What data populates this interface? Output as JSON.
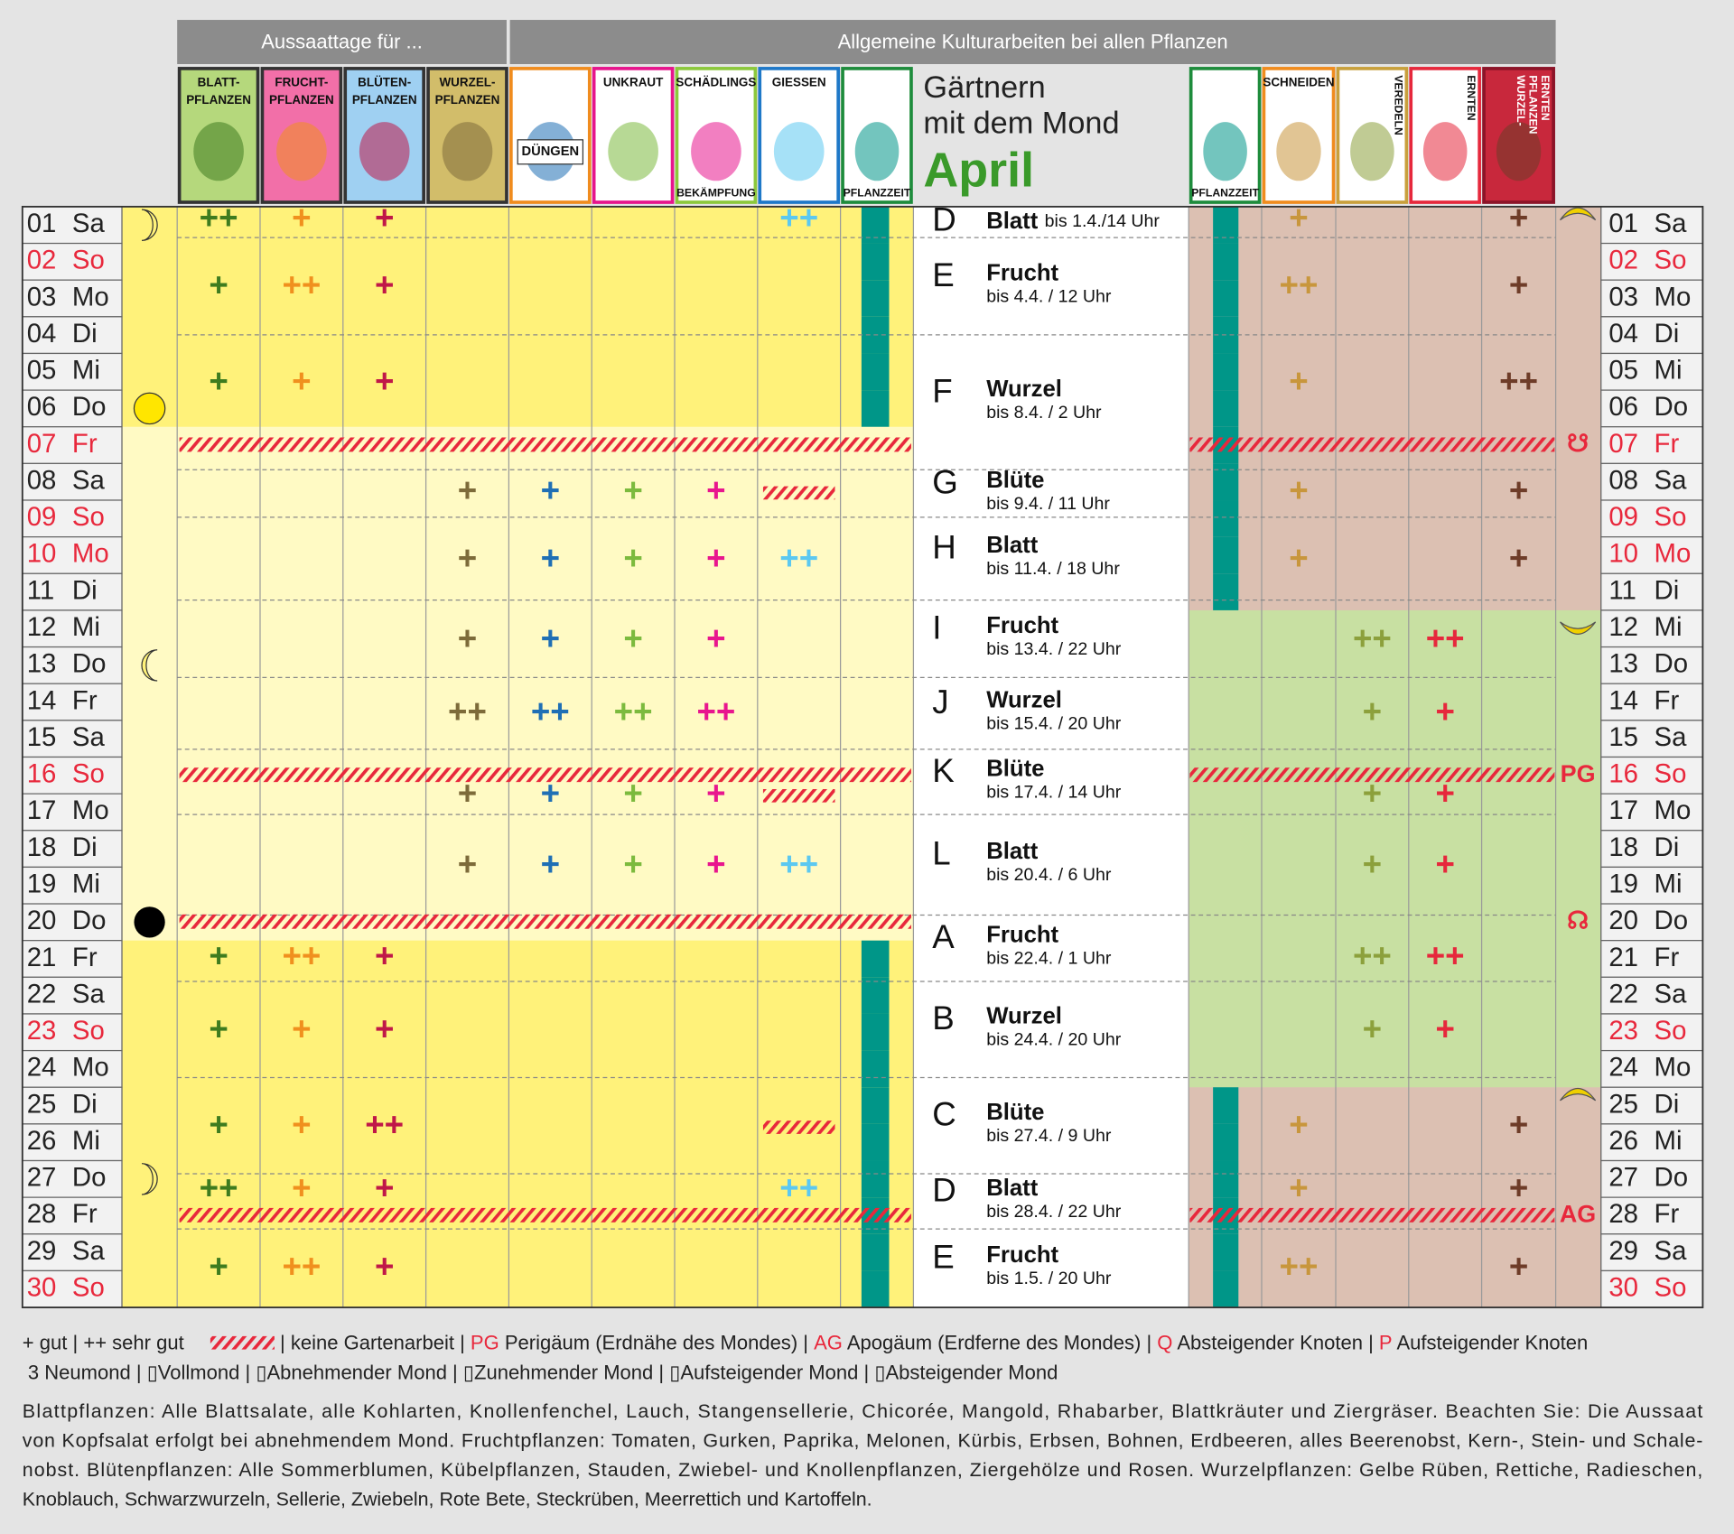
{
  "header": {
    "sowing": "Aussaattage für ...",
    "general": "Allgemeine Kulturarbeiten bei allen Pflanzen",
    "title_lines": [
      "Gärtnern",
      "mit dem Mond"
    ],
    "month": "April"
  },
  "columns_left": [
    {
      "top": [
        "BLATT-",
        "PFLANZEN"
      ],
      "bg": "#b5d87c",
      "border": "#333333",
      "mark": "#3e7c1f"
    },
    {
      "top": [
        "FRUCHT-",
        "PFLANZEN"
      ],
      "bg": "#f26fa8",
      "border": "#333333",
      "mark": "#f0901e"
    },
    {
      "top": [
        "BLÜTEN-",
        "PFLANZEN"
      ],
      "bg": "#9fd0f2",
      "border": "#333333",
      "mark": "#c01848"
    },
    {
      "top": [
        "WURZEL-",
        "PFLANZEN"
      ],
      "bg": "#d2bd6a",
      "border": "#333333",
      "mark": "#7d6b3a"
    },
    {
      "center": [
        "DÜNGEN"
      ],
      "bg": "#ffffff",
      "border": "#f08c1e",
      "mark": "#1f6fb5"
    },
    {
      "top": [
        "UNKRAUT"
      ],
      "bg": "#ffffff",
      "border": "#e6148c",
      "mark": "#7cba3e"
    },
    {
      "top": [
        "SCHÄDLINGS"
      ],
      "bottom": [
        "BEKÄMPFUNG"
      ],
      "bg": "#ffffff",
      "border": "#8cc83c",
      "mark": "#e8168e"
    },
    {
      "top": [
        "GIESSEN"
      ],
      "bg": "#ffffff",
      "border": "#1e78c8",
      "mark": "#5cc8f0"
    },
    {
      "bottom": [
        "PFLANZZEIT"
      ],
      "bg": "#ffffff",
      "border": "#1e8c3c",
      "mark": "#009688"
    }
  ],
  "columns_right": [
    {
      "bottom": [
        "PFLANZZEIT"
      ],
      "bg": "#ffffff",
      "border": "#1e8c3c",
      "mark": "#009688"
    },
    {
      "top": [
        "SCHNEIDEN"
      ],
      "bg": "#ffffff",
      "border": "#f08c1e",
      "mark": "#c8963c"
    },
    {
      "vertical": [
        "VEREDELN"
      ],
      "bg": "#ffffff",
      "border": "#c8a03c",
      "mark": "#8ca03c"
    },
    {
      "vertical": [
        "ERNTEN"
      ],
      "bg": "#ffffff",
      "border": "#e6283c",
      "mark": "#e6283c"
    },
    {
      "vertical": [
        "WURZEL-",
        "PFLANZEN",
        "ERNTEN"
      ],
      "bg": "#c8283c",
      "border": "#8c1428",
      "mark": "#6e3c28"
    }
  ],
  "days": [
    {
      "n": "01",
      "wd": "Sa",
      "pz_l": true,
      "pz_r": true
    },
    {
      "n": "02",
      "wd": "So",
      "red": true,
      "pz_l": true,
      "pz_r": true
    },
    {
      "n": "03",
      "wd": "Mo",
      "pz_l": true,
      "pz_r": true
    },
    {
      "n": "04",
      "wd": "Di",
      "pz_l": true,
      "pz_r": true
    },
    {
      "n": "05",
      "wd": "Mi",
      "pz_l": true,
      "pz_r": true
    },
    {
      "n": "06",
      "wd": "Do",
      "pz_l": true,
      "pz_r": true
    },
    {
      "n": "07",
      "wd": "Fr",
      "red": true,
      "pz_r": true,
      "nw_l": true,
      "nw_r": true,
      "marker": "☋"
    },
    {
      "n": "08",
      "wd": "Sa",
      "pz_r": true
    },
    {
      "n": "09",
      "wd": "So",
      "red": true,
      "pz_r": true
    },
    {
      "n": "10",
      "wd": "Mo",
      "red": true,
      "pz_r": true
    },
    {
      "n": "11",
      "wd": "Di",
      "pz_r": true
    },
    {
      "n": "12",
      "wd": "Mi"
    },
    {
      "n": "13",
      "wd": "Do"
    },
    {
      "n": "14",
      "wd": "Fr"
    },
    {
      "n": "15",
      "wd": "Sa"
    },
    {
      "n": "16",
      "wd": "So",
      "red": true,
      "nw_l": true,
      "nw_r": true,
      "marker": "PG"
    },
    {
      "n": "17",
      "wd": "Mo"
    },
    {
      "n": "18",
      "wd": "Di"
    },
    {
      "n": "19",
      "wd": "Mi"
    },
    {
      "n": "20",
      "wd": "Do",
      "nw_l": true,
      "marker": "☊"
    },
    {
      "n": "21",
      "wd": "Fr",
      "pz_l": true
    },
    {
      "n": "22",
      "wd": "Sa",
      "pz_l": true
    },
    {
      "n": "23",
      "wd": "So",
      "red": true,
      "pz_l": true
    },
    {
      "n": "24",
      "wd": "Mo",
      "pz_l": true
    },
    {
      "n": "25",
      "wd": "Di",
      "pz_l": true,
      "pz_r": true
    },
    {
      "n": "26",
      "wd": "Mi",
      "pz_l": true,
      "pz_r": true
    },
    {
      "n": "27",
      "wd": "Do",
      "pz_l": true,
      "pz_r": true
    },
    {
      "n": "28",
      "wd": "Fr",
      "pz_l": true,
      "pz_r": true,
      "nw_l": true,
      "nw_r": true,
      "marker": "AG"
    },
    {
      "n": "29",
      "wd": "Sa",
      "pz_l": true,
      "pz_r": true
    },
    {
      "n": "30",
      "wd": "So",
      "red": true,
      "pz_l": true,
      "pz_r": true
    }
  ],
  "periods": [
    {
      "letter": "D",
      "sign": "Blatt",
      "until": "bis 1.4./14 Uhr",
      "left": [
        "++",
        "+",
        "+",
        null,
        null,
        null,
        null,
        "++"
      ],
      "right": [
        "+",
        null,
        null,
        "+"
      ]
    },
    {
      "letter": "E",
      "sign": "Frucht",
      "until": "bis 4.4. / 12 Uhr",
      "left": [
        "+",
        "++",
        "+",
        null,
        null,
        null,
        null,
        null
      ],
      "right": [
        "++",
        null,
        null,
        "+"
      ]
    },
    {
      "letter": "F",
      "sign": "Wurzel",
      "until": "bis 8.4. / 2 Uhr",
      "left": [
        "+",
        "+",
        "+",
        null,
        null,
        null,
        null,
        null
      ],
      "right": [
        "+",
        null,
        null,
        "++"
      ]
    },
    {
      "letter": "G",
      "sign": "Blüte",
      "until": "bis 9.4. / 11 Uhr",
      "left": [
        null,
        null,
        null,
        "+",
        "+",
        "+",
        "+",
        null
      ],
      "no_water": true,
      "right": [
        "+",
        null,
        null,
        "+"
      ]
    },
    {
      "letter": "H",
      "sign": "Blatt",
      "until": "bis 11.4. / 18 Uhr",
      "left": [
        null,
        null,
        null,
        "+",
        "+",
        "+",
        "+",
        "++"
      ],
      "right": [
        "+",
        null,
        null,
        "+"
      ]
    },
    {
      "letter": "I",
      "sign": "Frucht",
      "until": "bis 13.4. / 22 Uhr",
      "left": [
        null,
        null,
        null,
        "+",
        "+",
        "+",
        "+",
        null
      ],
      "right": [
        null,
        "++",
        "++",
        null
      ]
    },
    {
      "letter": "J",
      "sign": "Wurzel",
      "until": "bis 15.4. / 20 Uhr",
      "left": [
        null,
        null,
        null,
        "++",
        "++",
        "++",
        "++",
        null
      ],
      "right": [
        null,
        "+",
        "+",
        null
      ]
    },
    {
      "letter": "K",
      "sign": "Blüte",
      "until": "bis 17.4. / 14 Uhr",
      "left": [
        null,
        null,
        null,
        "+",
        "+",
        "+",
        "+",
        null
      ],
      "no_water": true,
      "right": [
        null,
        "+",
        "+",
        null
      ]
    },
    {
      "letter": "L",
      "sign": "Blatt",
      "until": "bis 20.4. / 6 Uhr",
      "left": [
        null,
        null,
        null,
        "+",
        "+",
        "+",
        "+",
        "++"
      ],
      "right": [
        null,
        "+",
        "+",
        null
      ]
    },
    {
      "letter": "A",
      "sign": "Frucht",
      "until": "bis 22.4. / 1 Uhr",
      "left": [
        "+",
        "++",
        "+",
        null,
        null,
        null,
        null,
        null
      ],
      "right": [
        null,
        "++",
        "++",
        null
      ]
    },
    {
      "letter": "B",
      "sign": "Wurzel",
      "until": "bis 24.4. / 20 Uhr",
      "left": [
        "+",
        "+",
        "+",
        null,
        null,
        null,
        null,
        null
      ],
      "right": [
        null,
        "+",
        "+",
        null
      ]
    },
    {
      "letter": "C",
      "sign": "Blüte",
      "until": "bis 27.4. / 9 Uhr",
      "left": [
        "+",
        "+",
        "++",
        null,
        null,
        null,
        null,
        null
      ],
      "no_water": true,
      "right": [
        "+",
        null,
        null,
        "+"
      ]
    },
    {
      "letter": "D",
      "sign": "Blatt",
      "until": "bis 28.4. / 22 Uhr",
      "left": [
        "++",
        "+",
        "+",
        null,
        null,
        null,
        null,
        "++"
      ],
      "right": [
        "+",
        null,
        null,
        "+"
      ]
    },
    {
      "letter": "E",
      "sign": "Frucht",
      "until": "bis 1.5. / 20 Uhr",
      "left": [
        "+",
        "++",
        "+",
        null,
        null,
        null,
        null,
        null
      ],
      "right": [
        "++",
        null,
        null,
        "+"
      ]
    }
  ],
  "legend": {
    "line1_start": "+ gut | ++ sehr gut",
    "line1_parts": [
      {
        "text": " | keine Gartenarbeit | "
      },
      {
        "text": "PG",
        "red": true
      },
      {
        "text": " Perigäum (Erdnähe des Mondes) | "
      },
      {
        "text": "AG",
        "red": true
      },
      {
        "text": " Apogäum (Erdferne des Mondes) | "
      },
      {
        "text": "Q",
        "red": true
      },
      {
        "text": " Absteigender Knoten | "
      },
      {
        "text": "P",
        "red": true
      },
      {
        "text": " Aufsteigender Knoten"
      }
    ],
    "line2": " 3 Neumond | ▯Vollmond | ▯Abnehmender Mond | ▯Zunehmender Mond | ▯Aufsteigender Mond | ▯Absteigender Mond",
    "paragraph": [
      "Blattpflanzen: Alle Blattsalate, alle Kohlarten, Knollenfenchel, Lauch, Stangensellerie, Chicorée, Mangold, Rhabarber, Blattkräuter und Ziergräser. Beachten Sie: Die Aussaat",
      "von Kopfsalat erfolgt bei abnehmendem Mond. Fruchtpflanzen: Tomaten, Gurken, Paprika, Melonen, Kürbis, Erbsen, Bohnen, Erdbeeren, alles Beerenobst, Kern-, Stein- und Schale-",
      "nobst. Blütenpflanzen: Alle Sommerblumen, Kübelpflanzen, Stauden, Zwiebel- und Knollenpflanzen, Ziergehölze und Rosen. Wurzelpflanzen: Gelbe Rüben, Rettiche, Radieschen,",
      "Knoblauch, Schwarzwurzeln, Sellerie, Zwiebeln, Rote Bete, Steckrüben, Meerrettich und Kartoffeln."
    ]
  }
}
